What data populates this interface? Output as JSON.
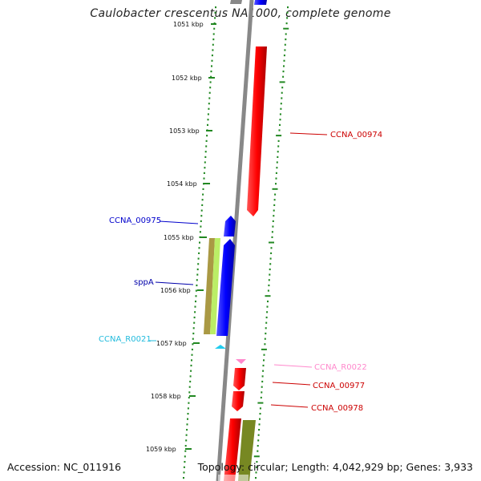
{
  "title": "Caulobacter crescentus NA1000, complete genome",
  "footer": {
    "accession": "Accession: NC_011916",
    "topology": "Topology: circular; Length: 4,042,929 bp; Genes: 3,933"
  },
  "colors": {
    "cds_forward": "#ff0000",
    "cds_reverse": "#0000ff",
    "rna": "#22ccee",
    "rna_pink": "#ff88cc",
    "backbone": "#888888",
    "tick": "#228822"
  },
  "axis": {
    "unit": "kbp",
    "ticks": [
      {
        "label": "1051 kbp"
      },
      {
        "label": "1052 kbp"
      },
      {
        "label": "1053 kbp"
      },
      {
        "label": "1054 kbp"
      },
      {
        "label": "1055 kbp"
      },
      {
        "label": "1056 kbp"
      },
      {
        "label": "1057 kbp"
      },
      {
        "label": "1058 kbp"
      },
      {
        "label": "1059 kbp"
      }
    ]
  },
  "features": [
    {
      "name": "CCNA_00974",
      "color": "#cc0000",
      "strand": "+"
    },
    {
      "name": "CCNA_00975",
      "color": "#0000cc",
      "strand": "-"
    },
    {
      "name": "sppA",
      "color": "#0000aa",
      "strand": "-"
    },
    {
      "name": "CCNA_R0021",
      "color": "#22bbdd",
      "strand": "-"
    },
    {
      "name": "CCNA_R0022",
      "color": "#ff88cc",
      "strand": "+"
    },
    {
      "name": "CCNA_00977",
      "color": "#cc0000",
      "strand": "+"
    },
    {
      "name": "CCNA_00978",
      "color": "#cc0000",
      "strand": "+"
    }
  ]
}
